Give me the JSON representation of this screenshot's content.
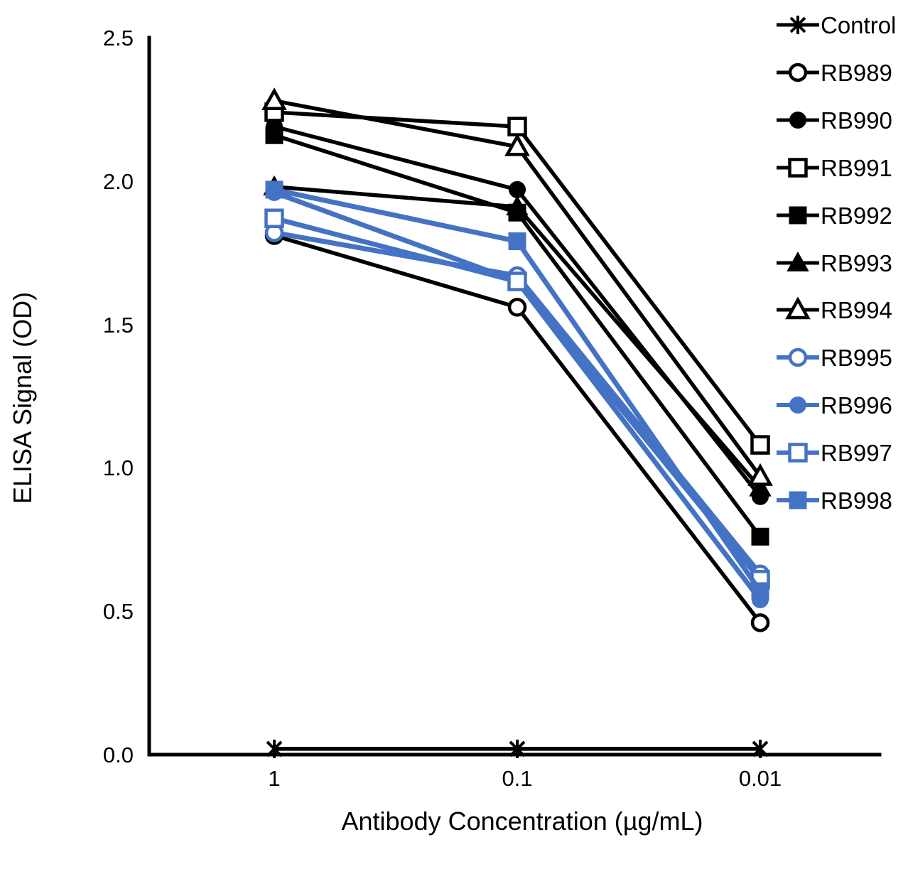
{
  "figure": {
    "background": "#ffffff",
    "accent_blue": "#4472C4",
    "line_black": "#000000"
  },
  "chart_data": {
    "type": "line",
    "title": "",
    "xlabel": "Antibody Concentration (µg/mL)",
    "ylabel": "ELISA Signal (OD)",
    "x_categories": [
      "1",
      "0.1",
      "0.01"
    ],
    "x_scale": "log_descending_equal_spacing",
    "ylim": [
      0.0,
      2.5
    ],
    "yticks": [
      "0.0",
      "0.5",
      "1.0",
      "1.5",
      "2.0",
      "2.5"
    ],
    "grid": "off",
    "legend_position": "right",
    "series": [
      {
        "name": "Control",
        "color": "#000000",
        "marker": "asterisk",
        "fill": "open",
        "values": [
          0.02,
          0.02,
          0.02
        ]
      },
      {
        "name": "RB989",
        "color": "#000000",
        "marker": "circle",
        "fill": "open",
        "values": [
          1.81,
          1.56,
          0.46
        ]
      },
      {
        "name": "RB990",
        "color": "#000000",
        "marker": "circle",
        "fill": "filled",
        "values": [
          2.19,
          1.97,
          0.9
        ]
      },
      {
        "name": "RB991",
        "color": "#000000",
        "marker": "square",
        "fill": "open",
        "values": [
          2.24,
          2.19,
          1.08
        ]
      },
      {
        "name": "RB992",
        "color": "#000000",
        "marker": "square",
        "fill": "filled",
        "values": [
          2.16,
          1.89,
          0.76
        ]
      },
      {
        "name": "RB993",
        "color": "#000000",
        "marker": "triangle",
        "fill": "filled",
        "values": [
          1.98,
          1.91,
          0.93
        ]
      },
      {
        "name": "RB994",
        "color": "#000000",
        "marker": "triangle",
        "fill": "open",
        "values": [
          2.28,
          2.12,
          0.97
        ]
      },
      {
        "name": "RB995",
        "color": "#4472C4",
        "marker": "circle",
        "fill": "open",
        "values": [
          1.82,
          1.67,
          0.63
        ]
      },
      {
        "name": "RB996",
        "color": "#4472C4",
        "marker": "circle",
        "fill": "filled",
        "values": [
          1.96,
          1.65,
          0.54
        ]
      },
      {
        "name": "RB997",
        "color": "#4472C4",
        "marker": "square",
        "fill": "open",
        "values": [
          1.87,
          1.65,
          0.61
        ]
      },
      {
        "name": "RB998",
        "color": "#4472C4",
        "marker": "square",
        "fill": "filled",
        "values": [
          1.97,
          1.79,
          0.57
        ]
      }
    ]
  }
}
